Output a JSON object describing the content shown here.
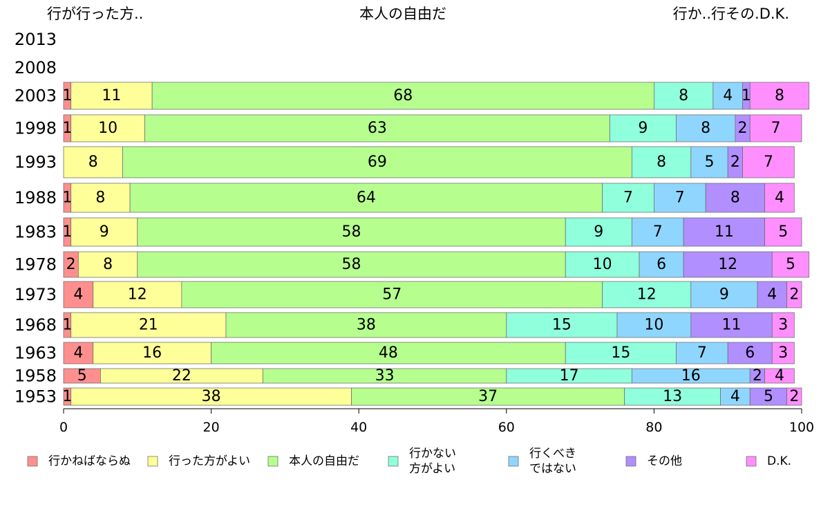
{
  "header": {
    "left": "行が行った方..",
    "center": "本人の自由だ",
    "right": "行か..行その.D.K."
  },
  "chart_data": {
    "type": "bar",
    "orientation": "horizontal",
    "stacked": true,
    "categories": [
      "2013",
      "2008",
      "2003",
      "1998",
      "1993",
      "1988",
      "1983",
      "1978",
      "1973",
      "1968",
      "1963",
      "1958",
      "1953"
    ],
    "xlim": [
      0,
      100
    ],
    "xticks": [
      0,
      20,
      40,
      60,
      80,
      100
    ],
    "grid": false,
    "legend_position": "bottom",
    "series": [
      {
        "name": "行かねばならぬ",
        "color": "#ff8f8f",
        "values": [
          null,
          null,
          1,
          1,
          0,
          1,
          1,
          2,
          4,
          1,
          4,
          5,
          1
        ]
      },
      {
        "name": "行った方がよい",
        "color": "#ffff99",
        "values": [
          null,
          null,
          11,
          10,
          8,
          8,
          9,
          8,
          12,
          21,
          16,
          22,
          38
        ]
      },
      {
        "name": "本人の自由だ",
        "color": "#b6ff8f",
        "values": [
          null,
          null,
          68,
          63,
          69,
          64,
          58,
          58,
          57,
          38,
          48,
          33,
          37
        ]
      },
      {
        "name": "行かない方がよい",
        "color": "#8fffdc",
        "values": [
          null,
          null,
          8,
          9,
          8,
          7,
          9,
          10,
          12,
          15,
          15,
          17,
          13
        ]
      },
      {
        "name": "行くべきではない",
        "color": "#8fd6ff",
        "values": [
          null,
          null,
          4,
          8,
          5,
          7,
          7,
          6,
          9,
          10,
          7,
          16,
          4
        ]
      },
      {
        "name": "その他",
        "color": "#b18fff",
        "values": [
          null,
          null,
          1,
          2,
          2,
          8,
          11,
          12,
          4,
          11,
          6,
          2,
          5
        ]
      },
      {
        "name": "D.K.",
        "color": "#ff8fff",
        "values": [
          null,
          null,
          8,
          7,
          7,
          4,
          5,
          5,
          2,
          3,
          3,
          4,
          2
        ]
      }
    ],
    "legend_labels": [
      [
        "行かねばならぬ"
      ],
      [
        "行った方がよい"
      ],
      [
        "本人の自由だ"
      ],
      [
        "行かない",
        "方がよい"
      ],
      [
        "行くべき",
        "ではない"
      ],
      [
        "その他"
      ],
      [
        "D.K."
      ]
    ]
  }
}
